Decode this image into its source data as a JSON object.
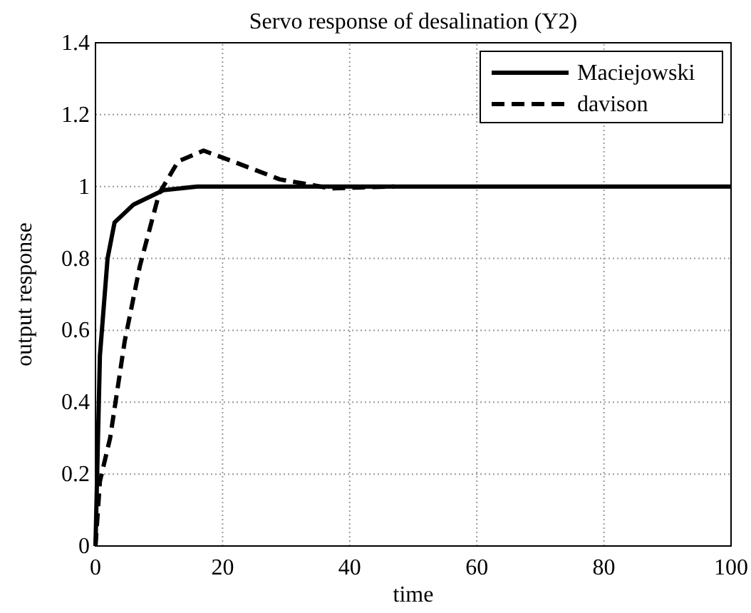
{
  "chart_data": {
    "type": "line",
    "title": "Servo response of desalination (Y2)",
    "xlabel": "time",
    "ylabel": "output response",
    "xlim": [
      0,
      100
    ],
    "ylim": [
      0,
      1.4
    ],
    "xticks": [
      0,
      20,
      40,
      60,
      80,
      100
    ],
    "yticks": [
      0,
      0.2,
      0.4,
      0.6,
      0.8,
      1,
      1.2,
      1.4
    ],
    "grid": true,
    "legend": "top right",
    "series": [
      {
        "name": "Maciejowski",
        "color": "#000000",
        "line_style": "solid",
        "x": [
          0,
          0.7,
          1.9,
          3,
          6,
          10.7,
          16,
          25,
          40,
          60,
          80,
          100
        ],
        "values": [
          0,
          0.53,
          0.8,
          0.9,
          0.95,
          0.99,
          1.0,
          1.0,
          1.0,
          1.0,
          1.0,
          1.0
        ]
      },
      {
        "name": "davison",
        "color": "#000000",
        "line_style": "dashed",
        "x": [
          0,
          0.7,
          2.3,
          4.6,
          7,
          10,
          13,
          17,
          21.6,
          29,
          37,
          47
        ],
        "values": [
          0,
          0.18,
          0.3,
          0.57,
          0.78,
          0.98,
          1.07,
          1.1,
          1.07,
          1.02,
          0.995,
          1.0
        ]
      }
    ]
  }
}
